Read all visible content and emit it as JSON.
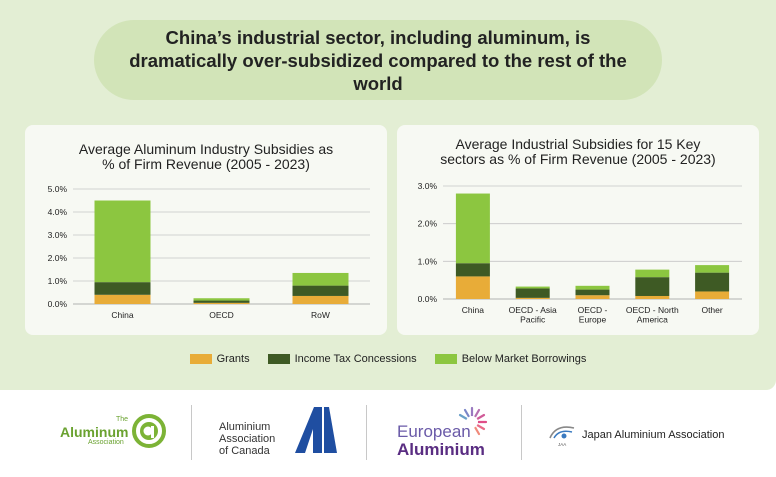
{
  "header": {
    "title": "China’s industrial sector, including aluminum, is dramatically over-subsidized compared to the rest of the world"
  },
  "colors": {
    "grants": "#e8ac38",
    "income_tax": "#3e5a24",
    "below_market": "#8cc640",
    "panel_bg": "#e3eed4",
    "pill_bg": "#d2e4b8",
    "card_bg": "#f7f9f3",
    "grid": "#c6c6c6"
  },
  "legend": {
    "grants": "Grants",
    "income_tax": "Income Tax Concessions",
    "below_market": "Below Market Borrowings"
  },
  "chart_data": [
    {
      "type": "bar",
      "stacked": true,
      "title_line1": "Average Aluminum Industry Subsidies as",
      "title_line2": "% of Firm Revenue (2005 - 2023)",
      "categories": [
        "China",
        "OECD",
        "RoW"
      ],
      "yticks": [
        "0.0%",
        "1.0%",
        "2.0%",
        "3.0%",
        "4.0%",
        "5.0%"
      ],
      "ylim": [
        0,
        5
      ],
      "grid": true,
      "series": [
        {
          "name": "Grants",
          "values": [
            0.4,
            0.05,
            0.35
          ]
        },
        {
          "name": "Income Tax Concessions",
          "values": [
            0.55,
            0.1,
            0.45
          ]
        },
        {
          "name": "Below Market Borrowings",
          "values": [
            3.55,
            0.1,
            0.55
          ]
        }
      ]
    },
    {
      "type": "bar",
      "stacked": true,
      "title_line1": "Average Industrial Subsidies for 15 Key",
      "title_line2": "sectors as % of Firm Revenue (2005 - 2023)",
      "categories": [
        "China",
        "OECD - Asia Pacific",
        "OECD - Europe",
        "OECD - North America",
        "Other"
      ],
      "category_lines": [
        [
          "China"
        ],
        [
          "OECD - Asia",
          "Pacific"
        ],
        [
          "OECD -",
          "Europe"
        ],
        [
          "OECD - North",
          "America"
        ],
        [
          "Other"
        ]
      ],
      "yticks": [
        "0.0%",
        "1.0%",
        "2.0%",
        "3.0%"
      ],
      "ylim": [
        0,
        3
      ],
      "grid": true,
      "series": [
        {
          "name": "Grants",
          "values": [
            0.6,
            0.03,
            0.1,
            0.08,
            0.2
          ]
        },
        {
          "name": "Income Tax Concessions",
          "values": [
            0.35,
            0.25,
            0.15,
            0.5,
            0.5
          ]
        },
        {
          "name": "Below Market Borrowings",
          "values": [
            1.85,
            0.05,
            0.1,
            0.2,
            0.2
          ]
        }
      ]
    }
  ],
  "logos": {
    "aa_the": "The",
    "aa_name": "Aluminum",
    "aa_assoc": "Association",
    "aac_line1": "Aluminium",
    "aac_line2": "Association",
    "aac_line3": "of Canada",
    "ea_line1": "European",
    "ea_line2": "Aluminium",
    "jaa_name": "Japan Aluminium Association",
    "jaa_mark": "JAA"
  }
}
